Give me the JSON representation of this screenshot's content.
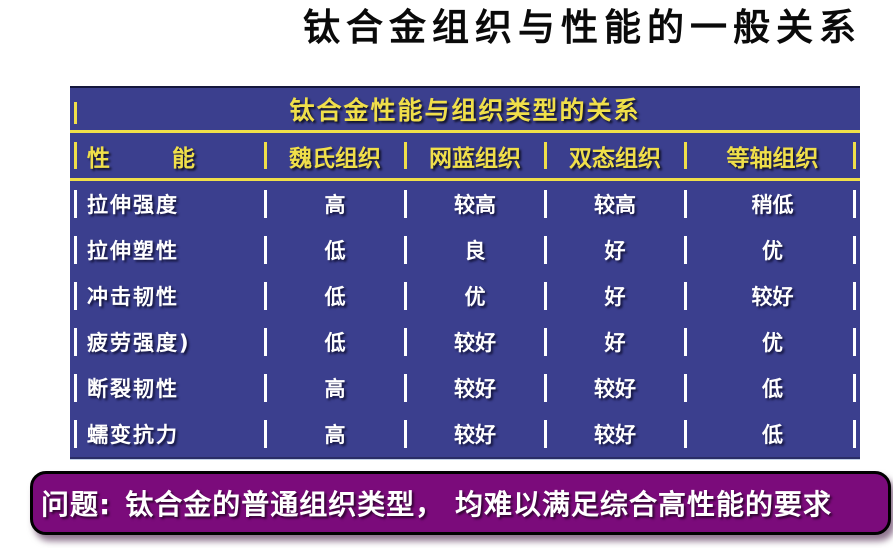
{
  "title": "钛合金组织与性能的一般关系",
  "table": {
    "caption": "钛合金性能与组织类型的关系",
    "headers": [
      "性      能",
      "魏氏组织",
      "网蓝组织",
      "双态组织",
      "等轴组织"
    ],
    "rows": [
      {
        "property": "拉伸强度",
        "values": [
          "高",
          "较高",
          "较高",
          "稍低"
        ]
      },
      {
        "property": "拉伸塑性",
        "values": [
          "低",
          "良",
          "好",
          "优"
        ]
      },
      {
        "property": "冲击韧性",
        "values": [
          "低",
          "优",
          "好",
          "较好"
        ]
      },
      {
        "property": "疲劳强度)",
        "values": [
          "低",
          "较好",
          "好",
          "优"
        ]
      },
      {
        "property": "断裂韧性",
        "values": [
          "高",
          "较好",
          "较好",
          "低"
        ]
      },
      {
        "property": "蠕变抗力",
        "values": [
          "高",
          "较好",
          "较好",
          "低"
        ]
      }
    ],
    "colors": {
      "table_background": "#3b3f8e",
      "accent_yellow": "#f0df4a",
      "data_text": "#ffffff"
    }
  },
  "note": {
    "prefix": "问题:",
    "text": "钛合金的普通组织类型， 均难以满足综合高性能的要求",
    "background": "#7b0b7b",
    "text_color": "#ffffff"
  },
  "title_color": "#0a0a0a"
}
